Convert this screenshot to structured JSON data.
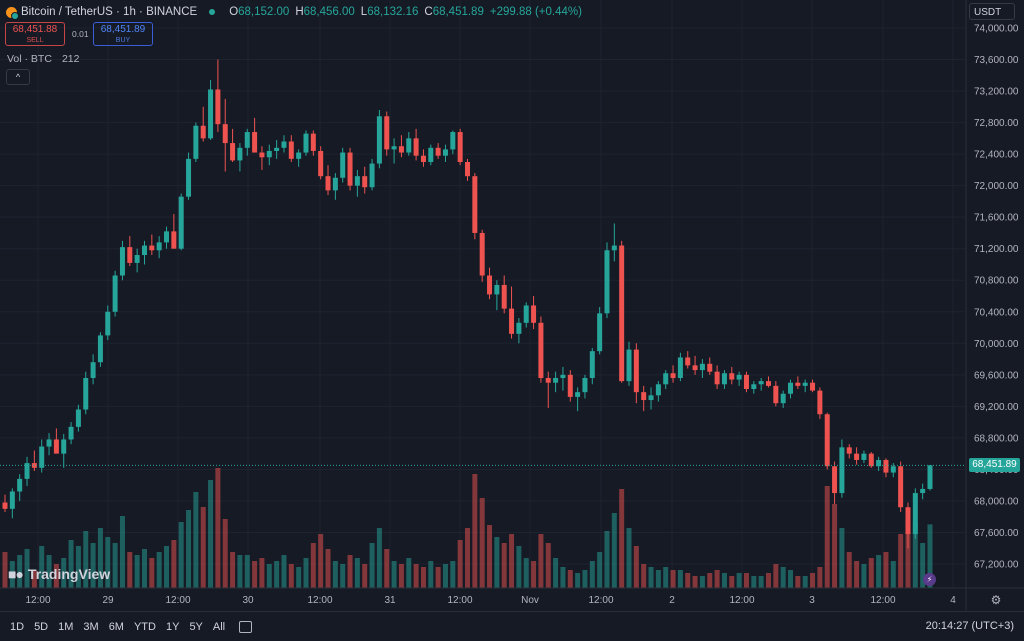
{
  "header": {
    "symbol": "Bitcoin / TetherUS · 1h · BINANCE",
    "o_label": "O",
    "o_value": "68,152.00",
    "h_label": "H",
    "h_value": "68,456.00",
    "l_label": "L",
    "l_value": "68,132.16",
    "c_label": "C",
    "c_value": "68,451.89",
    "change": "+299.88 (+0.44%)"
  },
  "trade": {
    "sell_price": "68,451.88",
    "sell_label": "SELL",
    "spread": "0.01",
    "buy_price": "68,451.89",
    "buy_label": "BUY"
  },
  "volume_legend": {
    "label": "Vol · BTC",
    "value": "212"
  },
  "currency": "USDT",
  "last_price": "68,451.89",
  "brand": "TradingView",
  "colors": {
    "up": "#26a69a",
    "down": "#ef5350",
    "background": "#161a25"
  },
  "chart_data": {
    "type": "candlestick",
    "series_name": "BTCUSDT 1h",
    "price_axis": {
      "min": 66900,
      "max": 74100,
      "ticks": [
        74000,
        73600,
        73200,
        72800,
        72400,
        72000,
        71600,
        71200,
        70800,
        70400,
        70000,
        69600,
        69200,
        68800,
        68400,
        68000,
        67600,
        67200
      ],
      "tick_labels": [
        "74,000.00",
        "73,600.00",
        "73,200.00",
        "72,800.00",
        "72,400.00",
        "72,000.00",
        "71,600.00",
        "71,200.00",
        "70,800.00",
        "70,400.00",
        "70,000.00",
        "69,600.00",
        "69,200.00",
        "68,800.00",
        "68,400.00",
        "68,000.00",
        "67,600.00",
        "67,200.00"
      ]
    },
    "time_axis_labels": [
      "12:00",
      "29",
      "12:00",
      "30",
      "12:00",
      "31",
      "12:00",
      "Nov",
      "12:00",
      "2",
      "12:00",
      "3",
      "12:00",
      "4"
    ],
    "candles_ohlcv": [
      [
        67980,
        68080,
        67860,
        67900,
        120
      ],
      [
        67900,
        68160,
        67780,
        68120,
        90
      ],
      [
        68120,
        68340,
        68000,
        68280,
        110
      ],
      [
        68280,
        68560,
        68190,
        68480,
        130
      ],
      [
        68480,
        68640,
        68380,
        68420,
        60
      ],
      [
        68420,
        68780,
        68360,
        68690,
        140
      ],
      [
        68690,
        68860,
        68580,
        68780,
        110
      ],
      [
        68780,
        68920,
        68650,
        68600,
        80
      ],
      [
        68600,
        68850,
        68420,
        68780,
        100
      ],
      [
        68780,
        69000,
        68720,
        68940,
        160
      ],
      [
        68940,
        69220,
        68880,
        69160,
        140
      ],
      [
        69160,
        69640,
        69100,
        69560,
        190
      ],
      [
        69560,
        69860,
        69480,
        69760,
        150
      ],
      [
        69760,
        70140,
        69700,
        70100,
        200
      ],
      [
        70100,
        70480,
        70040,
        70400,
        170
      ],
      [
        70400,
        70920,
        70340,
        70860,
        150
      ],
      [
        70860,
        71300,
        70800,
        71220,
        240
      ],
      [
        71220,
        71360,
        70980,
        71020,
        120
      ],
      [
        71020,
        71200,
        70900,
        71120,
        110
      ],
      [
        71120,
        71300,
        71000,
        71240,
        130
      ],
      [
        71240,
        71380,
        71120,
        71180,
        100
      ],
      [
        71180,
        71360,
        71080,
        71280,
        120
      ],
      [
        71280,
        71480,
        71200,
        71420,
        140
      ],
      [
        71420,
        71640,
        71380,
        71200,
        160
      ],
      [
        71200,
        71900,
        71180,
        71860,
        220
      ],
      [
        71860,
        72420,
        71820,
        72340,
        260
      ],
      [
        72340,
        72800,
        72300,
        72760,
        320
      ],
      [
        72760,
        73000,
        72560,
        72600,
        270
      ],
      [
        72600,
        73340,
        72580,
        73220,
        360
      ],
      [
        73220,
        73600,
        72680,
        72780,
        400
      ],
      [
        72780,
        73100,
        72180,
        72540,
        230
      ],
      [
        72540,
        72720,
        72300,
        72320,
        120
      ],
      [
        72320,
        72540,
        72180,
        72480,
        110
      ],
      [
        72480,
        72720,
        72380,
        72680,
        110
      ],
      [
        72680,
        72860,
        72520,
        72420,
        90
      ],
      [
        72420,
        72500,
        72200,
        72360,
        100
      ],
      [
        72360,
        72520,
        72260,
        72440,
        80
      ],
      [
        72440,
        72580,
        72340,
        72480,
        90
      ],
      [
        72480,
        72640,
        72420,
        72560,
        110
      ],
      [
        72560,
        72640,
        72300,
        72340,
        80
      ],
      [
        72340,
        72460,
        72240,
        72420,
        70
      ],
      [
        72420,
        72700,
        72380,
        72660,
        100
      ],
      [
        72660,
        72700,
        72380,
        72440,
        150
      ],
      [
        72440,
        72500,
        72080,
        72120,
        180
      ],
      [
        72120,
        72260,
        71880,
        71940,
        130
      ],
      [
        71940,
        72160,
        71820,
        72100,
        90
      ],
      [
        72100,
        72480,
        72040,
        72420,
        80
      ],
      [
        72420,
        72480,
        71940,
        72000,
        110
      ],
      [
        72000,
        72200,
        71860,
        72120,
        100
      ],
      [
        72120,
        72240,
        71900,
        71980,
        80
      ],
      [
        71980,
        72340,
        71940,
        72280,
        150
      ],
      [
        72280,
        72960,
        72220,
        72880,
        200
      ],
      [
        72880,
        72940,
        72380,
        72460,
        130
      ],
      [
        72460,
        72600,
        72280,
        72500,
        90
      ],
      [
        72500,
        72640,
        72360,
        72420,
        80
      ],
      [
        72420,
        72680,
        72380,
        72600,
        100
      ],
      [
        72600,
        72720,
        72320,
        72380,
        80
      ],
      [
        72380,
        72460,
        72240,
        72300,
        70
      ],
      [
        72300,
        72520,
        72260,
        72480,
        90
      ],
      [
        72480,
        72540,
        72340,
        72380,
        70
      ],
      [
        72380,
        72520,
        72300,
        72460,
        80
      ],
      [
        72460,
        72700,
        72400,
        72680,
        90
      ],
      [
        72680,
        72720,
        72260,
        72300,
        160
      ],
      [
        72300,
        72340,
        72060,
        72120,
        200
      ],
      [
        72120,
        72160,
        71320,
        71400,
        380
      ],
      [
        71400,
        71440,
        70780,
        70860,
        300
      ],
      [
        70860,
        70960,
        70560,
        70620,
        210
      ],
      [
        70620,
        70800,
        70420,
        70740,
        170
      ],
      [
        70740,
        70860,
        70380,
        70440,
        150
      ],
      [
        70440,
        70720,
        70060,
        70120,
        180
      ],
      [
        70120,
        70320,
        70000,
        70260,
        140
      ],
      [
        70260,
        70520,
        70200,
        70480,
        100
      ],
      [
        70480,
        70600,
        70180,
        70260,
        90
      ],
      [
        70260,
        70340,
        69500,
        69560,
        180
      ],
      [
        69560,
        69640,
        69180,
        69500,
        150
      ],
      [
        69500,
        69640,
        69380,
        69560,
        100
      ],
      [
        69560,
        69700,
        69400,
        69600,
        70
      ],
      [
        69600,
        69660,
        69260,
        69320,
        60
      ],
      [
        69320,
        69440,
        69140,
        69380,
        50
      ],
      [
        69380,
        69600,
        69300,
        69560,
        60
      ],
      [
        69560,
        69940,
        69480,
        69900,
        90
      ],
      [
        69900,
        70460,
        69860,
        70380,
        120
      ],
      [
        70380,
        71280,
        70320,
        71180,
        190
      ],
      [
        71180,
        71520,
        71040,
        71240,
        250
      ],
      [
        71240,
        71300,
        69500,
        69520,
        330
      ],
      [
        69520,
        70020,
        69460,
        69920,
        200
      ],
      [
        69920,
        70000,
        69240,
        69380,
        140
      ],
      [
        69380,
        69460,
        69140,
        69280,
        80
      ],
      [
        69280,
        69440,
        69160,
        69340,
        70
      ],
      [
        69340,
        69520,
        69260,
        69480,
        60
      ],
      [
        69480,
        69660,
        69420,
        69620,
        70
      ],
      [
        69620,
        69720,
        69500,
        69560,
        60
      ],
      [
        69560,
        69880,
        69520,
        69820,
        60
      ],
      [
        69820,
        69900,
        69680,
        69720,
        50
      ],
      [
        69720,
        69840,
        69600,
        69660,
        40
      ],
      [
        69660,
        69800,
        69560,
        69740,
        40
      ],
      [
        69740,
        69820,
        69600,
        69640,
        50
      ],
      [
        69640,
        69720,
        69420,
        69480,
        60
      ],
      [
        69480,
        69660,
        69420,
        69620,
        50
      ],
      [
        69620,
        69700,
        69480,
        69540,
        40
      ],
      [
        69540,
        69640,
        69460,
        69600,
        50
      ],
      [
        69600,
        69640,
        69380,
        69420,
        50
      ],
      [
        69420,
        69520,
        69360,
        69480,
        40
      ],
      [
        69480,
        69560,
        69400,
        69520,
        40
      ],
      [
        69520,
        69580,
        69440,
        69460,
        50
      ],
      [
        69460,
        69520,
        69200,
        69240,
        80
      ],
      [
        69240,
        69400,
        69180,
        69360,
        70
      ],
      [
        69360,
        69540,
        69300,
        69500,
        60
      ],
      [
        69500,
        69580,
        69420,
        69460,
        40
      ],
      [
        69460,
        69540,
        69380,
        69500,
        40
      ],
      [
        69500,
        69540,
        69380,
        69400,
        50
      ],
      [
        69400,
        69440,
        69040,
        69100,
        70
      ],
      [
        69100,
        69120,
        68400,
        68440,
        340
      ],
      [
        68440,
        68500,
        67960,
        68100,
        280
      ],
      [
        68100,
        68780,
        68040,
        68680,
        200
      ],
      [
        68680,
        68720,
        68540,
        68600,
        120
      ],
      [
        68600,
        68680,
        68460,
        68520,
        90
      ],
      [
        68520,
        68640,
        68480,
        68600,
        80
      ],
      [
        68600,
        68620,
        68420,
        68440,
        100
      ],
      [
        68440,
        68560,
        68380,
        68520,
        110
      ],
      [
        68520,
        68540,
        68300,
        68360,
        120
      ],
      [
        68360,
        68480,
        68300,
        68440,
        90
      ],
      [
        68440,
        68500,
        67860,
        67920,
        180
      ],
      [
        67920,
        67980,
        67400,
        67580,
        230
      ],
      [
        67580,
        68160,
        67520,
        68100,
        220
      ],
      [
        68100,
        68220,
        68020,
        68152,
        150
      ],
      [
        68152,
        68456,
        68132,
        68452,
        212
      ]
    ]
  }
}
